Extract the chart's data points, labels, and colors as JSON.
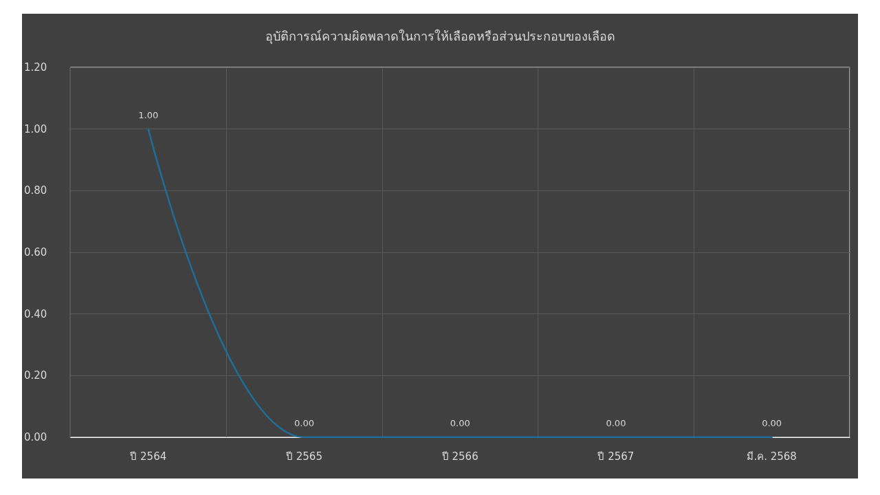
{
  "chart_data": {
    "type": "line",
    "title": "อุบัติการณ์ความผิดพลาดในการให้เลือดหรือส่วนประกอบของเลือด",
    "categories": [
      "ปี 2564",
      "ปี 2565",
      "ปี 2566",
      "ปี 2567",
      "มี.ค. 2568"
    ],
    "series": [
      {
        "color": "#1f6e99",
        "values": [
          1,
          0,
          0,
          0,
          0
        ],
        "value_labels": [
          "1.00",
          "0.00",
          "0.00",
          "0.00",
          "0.00"
        ]
      }
    ],
    "ylim": [
      0,
      1.2
    ],
    "yticks": [
      {
        "value": 0,
        "label": "0.00"
      },
      {
        "value": 0.2,
        "label": "0.20"
      },
      {
        "value": 0.4,
        "label": "0.40"
      },
      {
        "value": 0.6,
        "label": "0.60"
      },
      {
        "value": 0.8,
        "label": "0.80"
      },
      {
        "value": 1,
        "label": "1.00"
      },
      {
        "value": 1.2,
        "label": "1.20"
      }
    ],
    "grid": true,
    "marker": "none",
    "line_style": "solid"
  }
}
